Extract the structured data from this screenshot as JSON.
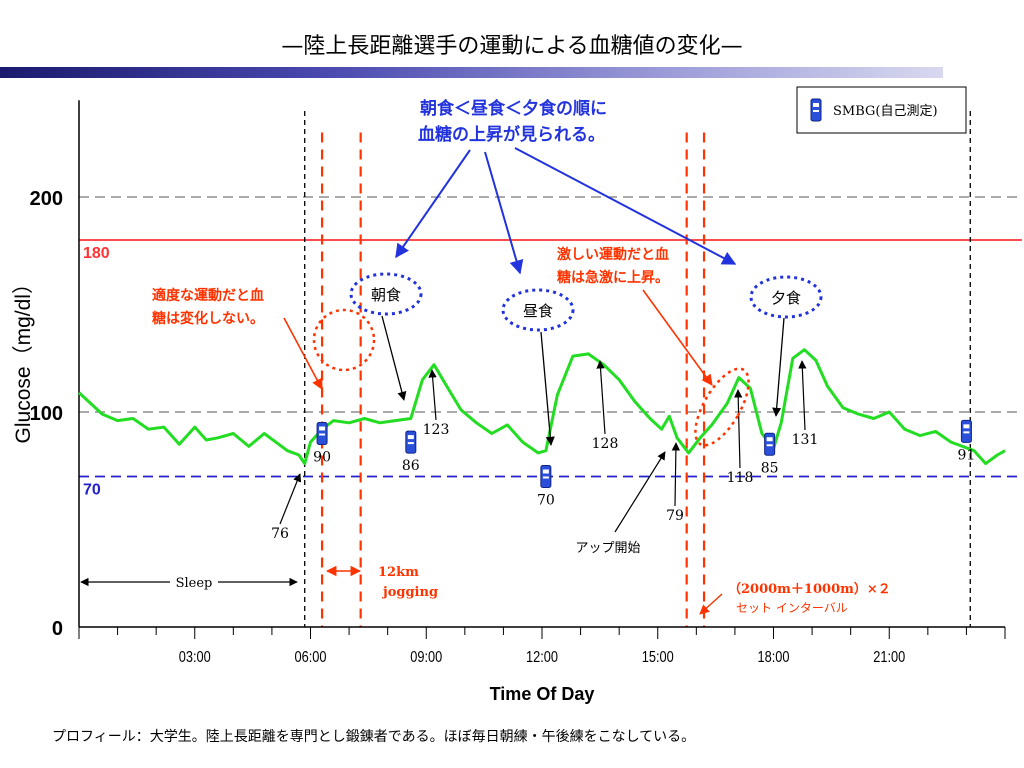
{
  "slide": {
    "title": "—陸上長距離選手の運動による血糖値の変化—",
    "footer": "プロフィール：大学生。陸上長距離を専門とし鍛錬者である。ほぼ毎日朝練・午後練をこなしている。"
  },
  "chart_data": {
    "type": "line",
    "xlabel": "Time Of Day",
    "ylabel": "Glucose（mg/dl）",
    "xlim": [
      0,
      24
    ],
    "ylim": [
      0,
      250
    ],
    "x_ticks": [
      "03:00",
      "06:00",
      "09:00",
      "12:00",
      "15:00",
      "18:00",
      "21:00"
    ],
    "x_tick_hours": [
      3,
      6,
      9,
      12,
      15,
      18,
      21
    ],
    "y_ticks": [
      0,
      100,
      200
    ],
    "ref_lines": [
      {
        "value": 180,
        "label": "180",
        "color": "#ff3333",
        "dash": "solid"
      },
      {
        "value": 70,
        "label": "70",
        "color": "#2020cc",
        "dash": "dashed"
      },
      {
        "value": 200,
        "label": "",
        "color": "#777777",
        "dash": "dashed"
      },
      {
        "value": 100,
        "label": "",
        "color": "#777777",
        "dash": "dashed"
      }
    ],
    "series": [
      {
        "color": "#22dd22",
        "x": [
          0.0,
          0.3,
          0.6,
          1.0,
          1.4,
          1.8,
          2.2,
          2.6,
          3.0,
          3.3,
          3.6,
          4.0,
          4.4,
          4.8,
          5.1,
          5.4,
          5.7,
          5.85,
          6.0,
          6.3,
          6.6,
          7.0,
          7.4,
          7.8,
          8.2,
          8.6,
          8.9,
          9.2,
          9.5,
          9.9,
          10.3,
          10.7,
          11.1,
          11.5,
          11.9,
          12.1,
          12.4,
          12.8,
          13.2,
          13.6,
          14.0,
          14.4,
          14.8,
          15.1,
          15.3,
          15.5,
          15.8,
          16.1,
          16.4,
          16.8,
          17.1,
          17.4,
          17.7,
          18.0,
          18.2,
          18.5,
          18.8,
          19.1,
          19.4,
          19.8,
          20.2,
          20.6,
          21.0,
          21.4,
          21.8,
          22.2,
          22.6,
          22.9,
          23.2,
          23.5,
          23.8,
          24.0
        ],
        "y": [
          109,
          104,
          99,
          96,
          97,
          92,
          93,
          85,
          93,
          87,
          88,
          90,
          84,
          90,
          86,
          82,
          80,
          76,
          86,
          92,
          96,
          95,
          97,
          95,
          96,
          97,
          115,
          122,
          113,
          101,
          95,
          90,
          94,
          86,
          81,
          82,
          108,
          126,
          127,
          122,
          115,
          105,
          97,
          92,
          98,
          88,
          81,
          88,
          94,
          104,
          116,
          111,
          90,
          83,
          95,
          125,
          129,
          124,
          112,
          102,
          99,
          97,
          100,
          92,
          89,
          91,
          86,
          84,
          82,
          76,
          80,
          82
        ]
      }
    ],
    "smbg": [
      {
        "time": 6.3,
        "value": 90,
        "label": "90"
      },
      {
        "time": 8.6,
        "value": 86,
        "label": "86"
      },
      {
        "time": 12.1,
        "value": 70,
        "label": "70"
      },
      {
        "time": 17.9,
        "value": 85,
        "label": "85"
      },
      {
        "time": 23.0,
        "value": 91,
        "label": "91"
      }
    ],
    "point_labels": [
      {
        "time": 5.85,
        "value": 76,
        "label": "76"
      },
      {
        "time": 9.2,
        "value": 123,
        "label": "123"
      },
      {
        "time": 13.4,
        "value": 128,
        "label": "128"
      },
      {
        "time": 15.4,
        "value": 79,
        "label": "79"
      },
      {
        "time": 17.2,
        "value": 118,
        "label": "118"
      },
      {
        "time": 18.6,
        "value": 131,
        "label": "131"
      }
    ],
    "legend": {
      "label": "SMBG(自己測定)",
      "position": "top-right"
    },
    "annotations": {
      "blue_note": [
        "朝食＜昼食＜夕食の順に",
        "血糖の上昇が見られる。"
      ],
      "meals": [
        "朝食",
        "昼食",
        "夕食"
      ],
      "moderate_note": [
        "適度な運動だと血",
        "糖は変化しない。"
      ],
      "intense_note": [
        "激しい運動だと血",
        "糖は急激に上昇。"
      ],
      "jog_distance": "12km",
      "jog_label": "jogging",
      "sleep": "Sleep",
      "up_start": "アップ開始",
      "interval_main": "（2000m＋1000m）×２",
      "interval_sub": "セット インターバル"
    }
  }
}
